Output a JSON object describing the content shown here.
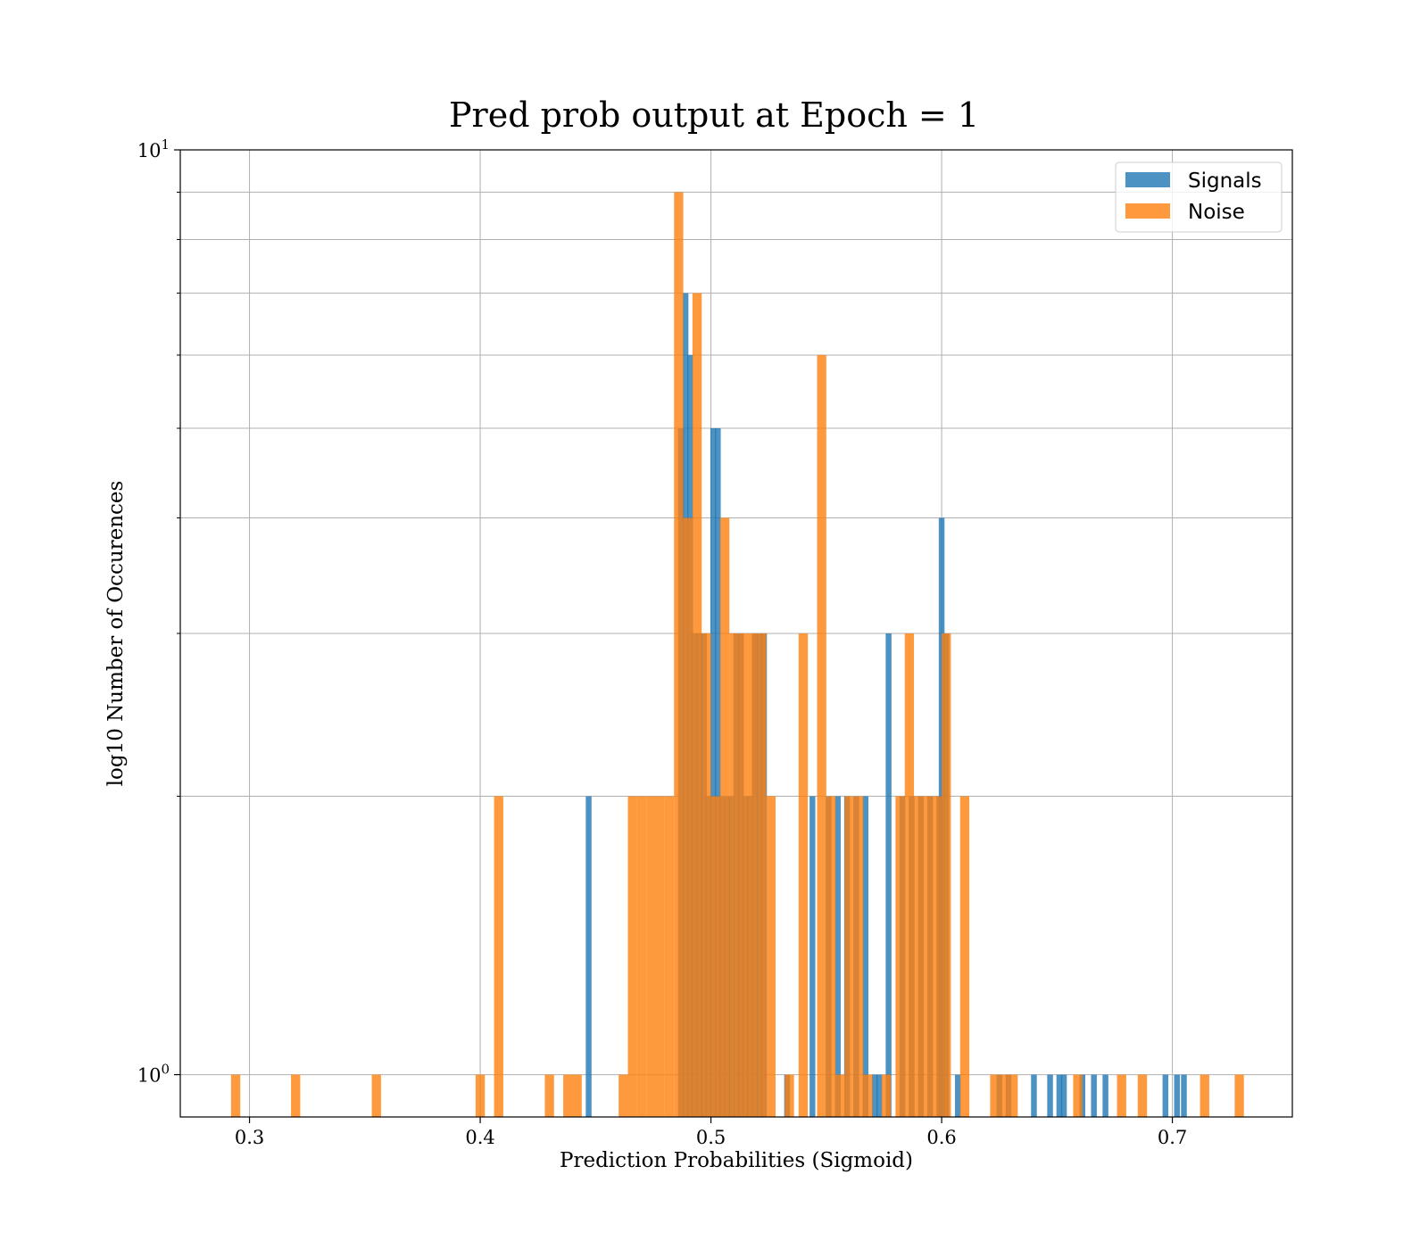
{
  "chart_data": {
    "type": "bar",
    "title": "Pred prob output at Epoch = 1",
    "xlabel": "Prediction Probabilities (Sigmoid)",
    "ylabel": "log10 Number of Occurences",
    "xlim": [
      0.27,
      0.752
    ],
    "ylim": [
      0.9,
      10
    ],
    "yscale": "log",
    "grid": true,
    "legend_position": "top-right",
    "bin_width": 0.004,
    "x_ticks": [
      {
        "value": 0.3,
        "label": "0.3"
      },
      {
        "value": 0.4,
        "label": "0.4"
      },
      {
        "value": 0.5,
        "label": "0.5"
      },
      {
        "value": 0.6,
        "label": "0.6"
      },
      {
        "value": 0.7,
        "label": "0.7"
      }
    ],
    "y_ticks": [
      {
        "value": 1,
        "base": "10",
        "exp": "0"
      },
      {
        "value": 10,
        "base": "10",
        "exp": "1"
      }
    ],
    "y_minor_ticks": [
      2,
      3,
      4,
      5,
      6,
      7,
      8,
      9
    ],
    "series": [
      {
        "name": "Signals",
        "color": "#1f77b4",
        "opacity": 0.8,
        "bin_width": 0.0025,
        "x": [
          0.447,
          0.487,
          0.489,
          0.491,
          0.493,
          0.495,
          0.497,
          0.499,
          0.501,
          0.503,
          0.505,
          0.507,
          0.509,
          0.511,
          0.513,
          0.515,
          0.517,
          0.519,
          0.521,
          0.523,
          0.533,
          0.544,
          0.551,
          0.555,
          0.559,
          0.563,
          0.567,
          0.571,
          0.573,
          0.577,
          0.583,
          0.587,
          0.591,
          0.595,
          0.599,
          0.6,
          0.602,
          0.607,
          0.625,
          0.629,
          0.64,
          0.647,
          0.651,
          0.653,
          0.661,
          0.666,
          0.671,
          0.697,
          0.702,
          0.705
        ],
        "values": [
          2,
          5,
          7,
          6,
          3,
          3,
          3,
          2,
          5,
          5,
          2,
          2,
          2,
          3,
          3,
          2,
          2,
          3,
          3,
          3,
          1,
          2,
          2,
          2,
          2,
          2,
          2,
          1,
          1,
          3,
          2,
          2,
          2,
          2,
          2,
          4,
          3,
          1,
          1,
          1,
          1,
          1,
          1,
          1,
          1,
          1,
          1,
          1,
          1,
          1
        ]
      },
      {
        "name": "Noise",
        "color": "#ff7f0e",
        "opacity": 0.8,
        "bin_width": 0.004,
        "x": [
          0.294,
          0.32,
          0.355,
          0.4,
          0.408,
          0.43,
          0.438,
          0.442,
          0.462,
          0.466,
          0.47,
          0.474,
          0.478,
          0.482,
          0.486,
          0.49,
          0.494,
          0.498,
          0.502,
          0.506,
          0.51,
          0.514,
          0.518,
          0.522,
          0.526,
          0.534,
          0.54,
          0.548,
          0.552,
          0.556,
          0.56,
          0.564,
          0.568,
          0.576,
          0.582,
          0.586,
          0.59,
          0.594,
          0.598,
          0.602,
          0.61,
          0.623,
          0.627,
          0.631,
          0.659,
          0.678,
          0.687,
          0.714,
          0.729
        ],
        "values": [
          1,
          1,
          1,
          1,
          2,
          1,
          1,
          1,
          1,
          2,
          2,
          2,
          2,
          2,
          9,
          4,
          7,
          3,
          2,
          4,
          3,
          3,
          3,
          3,
          2,
          1,
          3,
          6,
          2,
          1,
          2,
          2,
          1,
          1,
          2,
          3,
          2,
          2,
          2,
          3,
          2,
          1,
          1,
          1,
          1,
          1,
          1,
          1,
          1
        ]
      }
    ]
  }
}
